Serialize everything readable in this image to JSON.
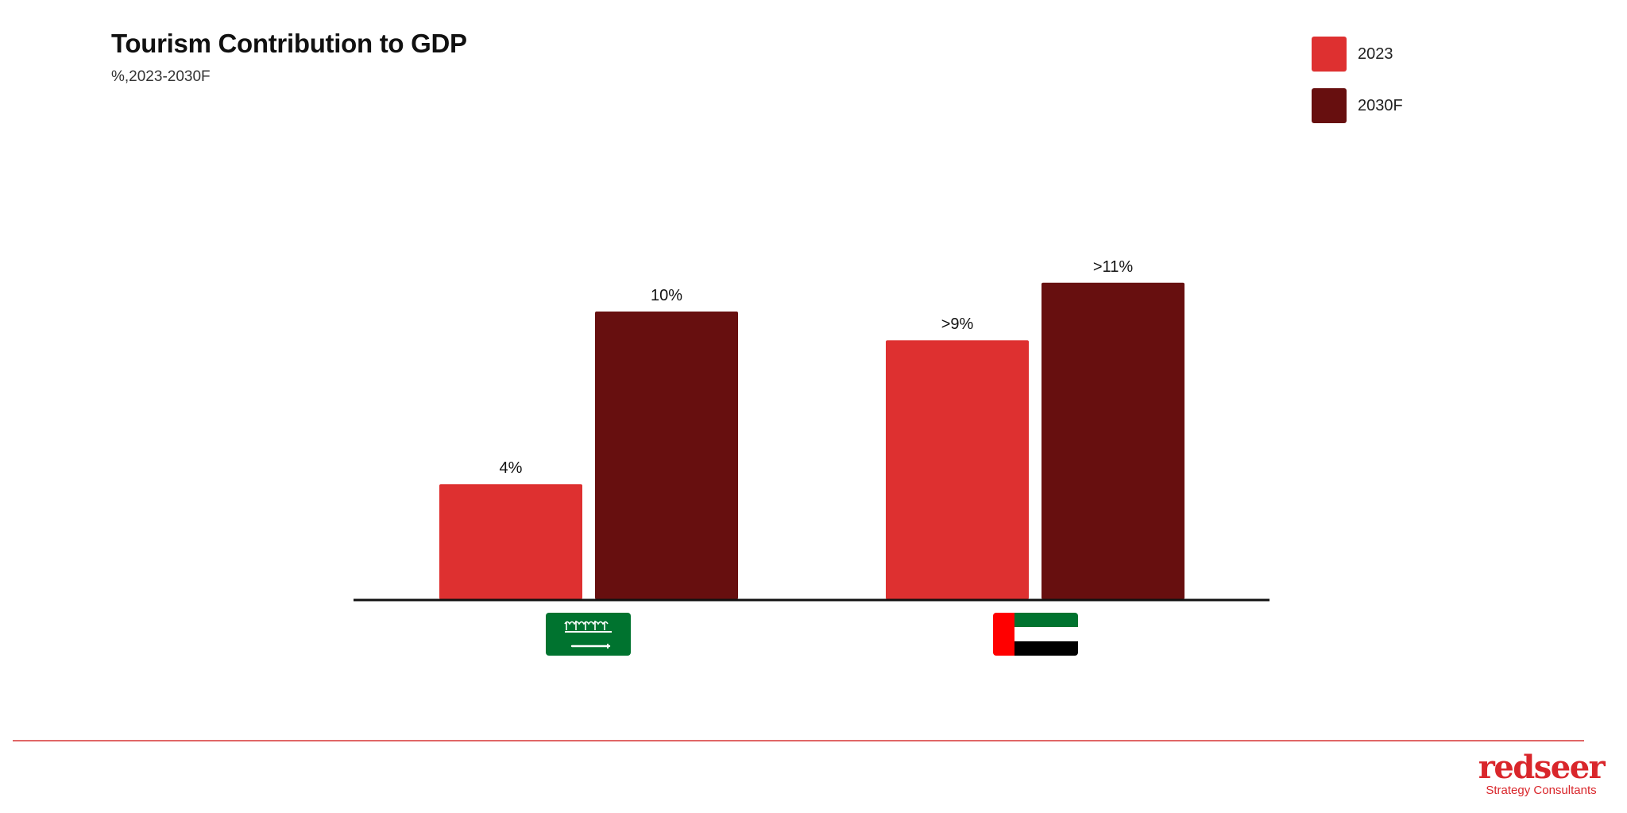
{
  "colors": {
    "series_2023": "#de3030",
    "series_2030F": "#670f0f",
    "axis": "#111111",
    "brand": "#d9262b"
  },
  "chart_data": {
    "type": "bar",
    "title": "Tourism Contribution to GDP",
    "subtitle": "%,2023-2030F",
    "categories": [
      "Saudi Arabia flag",
      "United Arab Emirates flag"
    ],
    "series": [
      {
        "name": "2023",
        "values": [
          4,
          9
        ],
        "labels": [
          "4%",
          ">9%"
        ]
      },
      {
        "name": "2030F",
        "values": [
          10,
          11
        ],
        "labels": [
          "10%",
          ">11%"
        ]
      }
    ],
    "ylim": [
      0,
      11
    ],
    "grid": false,
    "legend_position": "top-right"
  },
  "footer": {
    "logo_text": "redseer",
    "tagline": "Strategy Consultants"
  }
}
